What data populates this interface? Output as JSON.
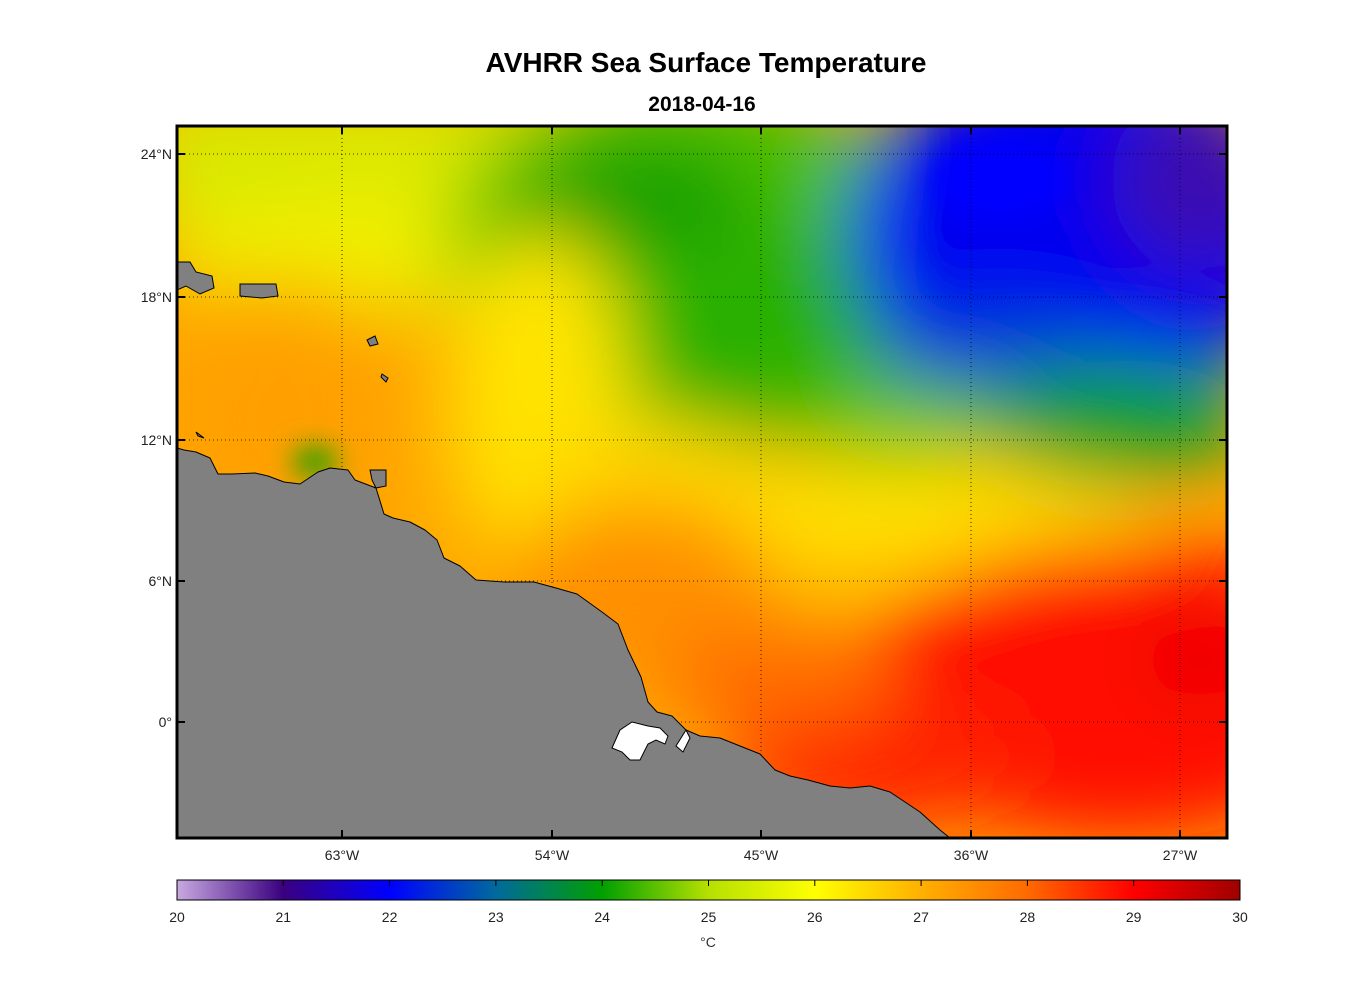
{
  "title": "AVHRR Sea Surface Temperature",
  "subtitle": "2018-04-16",
  "chart_data": {
    "type": "heatmap",
    "variable": "Sea Surface Temperature",
    "longitude_ticks": [
      "63°W",
      "54°W",
      "45°W",
      "36°W",
      "27°W"
    ],
    "latitude_ticks": [
      "24°N",
      "18°N",
      "12°N",
      "6°N",
      "0°"
    ],
    "lon_range": [
      -70,
      -25
    ],
    "lat_range": [
      -4.8,
      25
    ],
    "grid": true,
    "land_color": "#808080",
    "colorbar": {
      "min": 20,
      "max": 30,
      "ticks": [
        "20",
        "21",
        "22",
        "23",
        "24",
        "25",
        "26",
        "27",
        "28",
        "29",
        "30"
      ],
      "unit": "°C",
      "colormap": [
        "#c8a9e0",
        "#3a0080",
        "#0000ff",
        "#006a9c",
        "#00a000",
        "#b6e000",
        "#ffff00",
        "#ffb000",
        "#ff6a00",
        "#ff0000",
        "#a00000"
      ]
    },
    "regions": [
      {
        "area": "northeast",
        "approx_sst": 21.5
      },
      {
        "area": "north-central",
        "approx_sst": 24
      },
      {
        "area": "northwest",
        "approx_sst": 26
      },
      {
        "area": "west-central",
        "approx_sst": 27
      },
      {
        "area": "central",
        "approx_sst": 27.5
      },
      {
        "area": "southeast",
        "approx_sst": 29
      }
    ]
  }
}
